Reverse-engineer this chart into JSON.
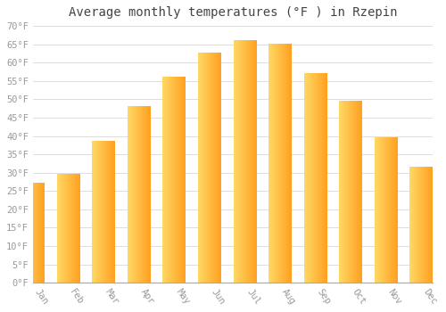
{
  "title": "Average monthly temperatures (°F ) in Rzepin",
  "months": [
    "Jan",
    "Feb",
    "Mar",
    "Apr",
    "May",
    "Jun",
    "Jul",
    "Aug",
    "Sep",
    "Oct",
    "Nov",
    "Dec"
  ],
  "values": [
    27,
    29.5,
    38.5,
    48,
    56,
    62.5,
    66,
    65,
    57,
    49.5,
    39.5,
    31.5
  ],
  "bar_color_left": "#FFD966",
  "bar_color_right": "#FFA020",
  "background_color": "#FFFFFF",
  "grid_color": "#DDDDDD",
  "ylim": [
    0,
    70
  ],
  "yticks": [
    0,
    5,
    10,
    15,
    20,
    25,
    30,
    35,
    40,
    45,
    50,
    55,
    60,
    65,
    70
  ],
  "ytick_labels": [
    "0°F",
    "5°F",
    "10°F",
    "15°F",
    "20°F",
    "25°F",
    "30°F",
    "35°F",
    "40°F",
    "45°F",
    "50°F",
    "55°F",
    "60°F",
    "65°F",
    "70°F"
  ],
  "title_fontsize": 10,
  "tick_fontsize": 7.5,
  "font_color": "#999999",
  "title_color": "#444444",
  "xticklabel_rotation": -55
}
